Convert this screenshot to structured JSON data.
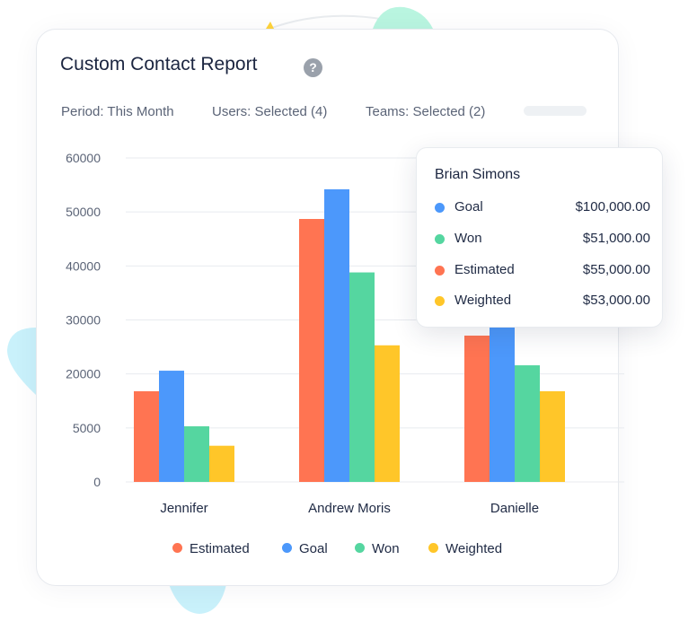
{
  "header": {
    "title": "Custom Contact Report",
    "help_icon": "question-circle-icon",
    "help_glyph": "?"
  },
  "filters": [
    {
      "label": "Period: This Month"
    },
    {
      "label": "Users: Selected (4)"
    },
    {
      "label": "Teams: Selected (2)"
    }
  ],
  "tooltip": {
    "name": "Brian Simons",
    "rows": [
      {
        "label": "Goal",
        "value": "$100,000.00",
        "color": "#4c98fb"
      },
      {
        "label": "Won",
        "value": "$51,000.00",
        "color": "#55d6a0"
      },
      {
        "label": "Estimated",
        "value": "$55,000.00",
        "color": "#ff7452"
      },
      {
        "label": "Weighted",
        "value": "$53,000.00",
        "color": "#ffc629"
      }
    ]
  },
  "chart_data": {
    "type": "bar",
    "categories": [
      "Jennifer",
      "Andrew Moris",
      "Danielle"
    ],
    "series": [
      {
        "name": "Estimated",
        "color": "#ff7452",
        "values": [
          16800,
          48700,
          27100
        ]
      },
      {
        "name": "Goal",
        "color": "#4c98fb",
        "values": [
          20600,
          54200,
          29000
        ]
      },
      {
        "name": "Won",
        "color": "#55d6a0",
        "values": [
          10300,
          38800,
          21600
        ]
      },
      {
        "name": "Weighted",
        "color": "#ffc629",
        "values": [
          6700,
          25300,
          16800
        ]
      }
    ],
    "yticks": [
      "0",
      "5000",
      "20000",
      "30000",
      "40000",
      "50000",
      "60000"
    ],
    "ylim": [
      0,
      60000
    ],
    "grid": true,
    "legend": "bottom"
  }
}
